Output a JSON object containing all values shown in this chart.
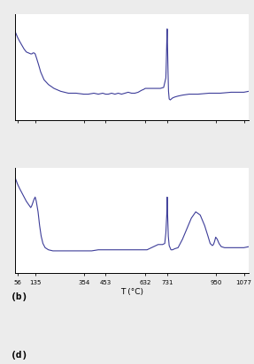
{
  "line_color": "#3d3d99",
  "line_width": 0.8,
  "bg_color": "#ececec",
  "plot_bg": "#ffffff",
  "xlabel": "T (°C)",
  "xlabel_fontsize": 6.5,
  "label_b": "(b)",
  "label_d": "(d)",
  "label_fontsize": 8,
  "xtick_labels": [
    "56",
    "135",
    "354",
    "453",
    "632",
    "731",
    "950",
    "1077"
  ],
  "xtick_vals": [
    56,
    135,
    354,
    453,
    632,
    731,
    950,
    1077
  ],
  "xmin": 45,
  "xmax": 1100,
  "tick_fontsize": 5.0,
  "plot_b": {
    "x": [
      45,
      56,
      65,
      75,
      85,
      95,
      105,
      115,
      120,
      125,
      130,
      135,
      142,
      150,
      160,
      175,
      195,
      220,
      250,
      285,
      320,
      354,
      375,
      400,
      420,
      440,
      453,
      465,
      480,
      495,
      510,
      525,
      540,
      555,
      570,
      585,
      600,
      615,
      625,
      632,
      640,
      650,
      660,
      672,
      685,
      700,
      715,
      725,
      727,
      729,
      731,
      733,
      735,
      737,
      740,
      745,
      750,
      755,
      765,
      780,
      800,
      830,
      870,
      920,
      970,
      1020,
      1077,
      1100
    ],
    "y": [
      0.92,
      0.86,
      0.82,
      0.78,
      0.74,
      0.71,
      0.7,
      0.69,
      0.69,
      0.7,
      0.7,
      0.69,
      0.64,
      0.58,
      0.5,
      0.42,
      0.37,
      0.33,
      0.3,
      0.28,
      0.28,
      0.27,
      0.27,
      0.28,
      0.27,
      0.28,
      0.27,
      0.27,
      0.28,
      0.27,
      0.28,
      0.27,
      0.28,
      0.29,
      0.28,
      0.28,
      0.29,
      0.31,
      0.32,
      0.33,
      0.33,
      0.33,
      0.33,
      0.33,
      0.33,
      0.33,
      0.34,
      0.44,
      0.6,
      0.8,
      0.95,
      0.72,
      0.48,
      0.3,
      0.22,
      0.21,
      0.22,
      0.23,
      0.24,
      0.25,
      0.26,
      0.27,
      0.27,
      0.28,
      0.28,
      0.29,
      0.29,
      0.3
    ]
  },
  "plot_d": {
    "x": [
      45,
      56,
      65,
      75,
      85,
      95,
      105,
      115,
      120,
      125,
      130,
      135,
      140,
      148,
      155,
      162,
      170,
      180,
      195,
      215,
      245,
      280,
      320,
      354,
      390,
      420,
      453,
      475,
      500,
      525,
      550,
      575,
      600,
      620,
      632,
      640,
      650,
      660,
      670,
      680,
      690,
      700,
      710,
      720,
      725,
      729,
      731,
      733,
      736,
      740,
      748,
      755,
      765,
      780,
      800,
      820,
      840,
      860,
      880,
      900,
      915,
      925,
      935,
      940,
      945,
      950,
      957,
      965,
      975,
      990,
      1010,
      1040,
      1077,
      1100
    ],
    "y": [
      0.9,
      0.84,
      0.8,
      0.76,
      0.72,
      0.68,
      0.65,
      0.62,
      0.64,
      0.67,
      0.7,
      0.72,
      0.68,
      0.58,
      0.45,
      0.35,
      0.28,
      0.24,
      0.22,
      0.21,
      0.21,
      0.21,
      0.21,
      0.21,
      0.21,
      0.22,
      0.22,
      0.22,
      0.22,
      0.22,
      0.22,
      0.22,
      0.22,
      0.22,
      0.22,
      0.22,
      0.23,
      0.24,
      0.25,
      0.26,
      0.27,
      0.27,
      0.27,
      0.28,
      0.38,
      0.55,
      0.72,
      0.55,
      0.35,
      0.26,
      0.22,
      0.22,
      0.23,
      0.24,
      0.32,
      0.42,
      0.52,
      0.58,
      0.55,
      0.45,
      0.35,
      0.28,
      0.26,
      0.27,
      0.3,
      0.34,
      0.32,
      0.28,
      0.25,
      0.24,
      0.24,
      0.24,
      0.24,
      0.25
    ]
  }
}
